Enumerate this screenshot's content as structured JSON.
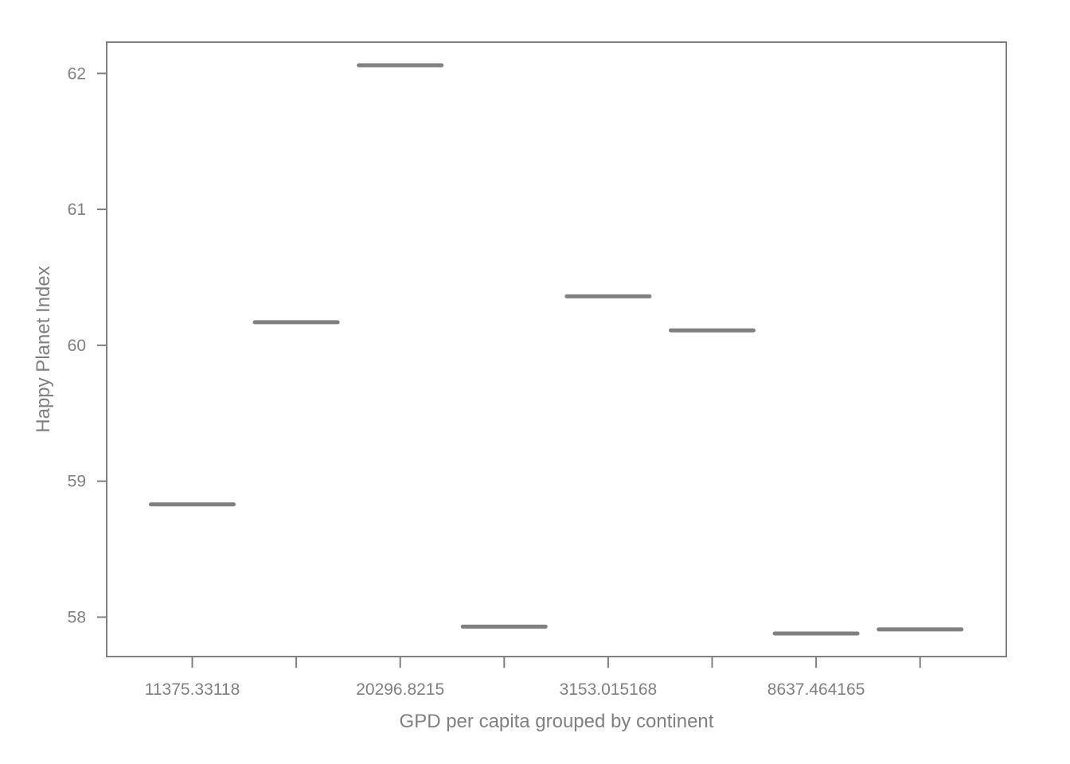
{
  "chart_data": {
    "type": "box",
    "title": "",
    "xlabel": "GPD per capita grouped by continent",
    "ylabel": "Happy Planet Index",
    "ylim": [
      57.71,
      62.23
    ],
    "yticks": [
      58,
      59,
      60,
      61,
      62
    ],
    "categories": [
      "",
      "",
      "",
      "",
      "",
      "",
      "",
      ""
    ],
    "x_tick_labels_shown": [
      "11375.33118",
      "20296.8215",
      "3153.015168",
      "8637.464165"
    ],
    "values": [
      58.83,
      60.17,
      62.06,
      57.93,
      60.36,
      60.11,
      57.88,
      57.91
    ],
    "grid": false,
    "legend": "none",
    "colors": {
      "mark": "#808080",
      "axis": "#808080",
      "text": "#808080"
    }
  }
}
